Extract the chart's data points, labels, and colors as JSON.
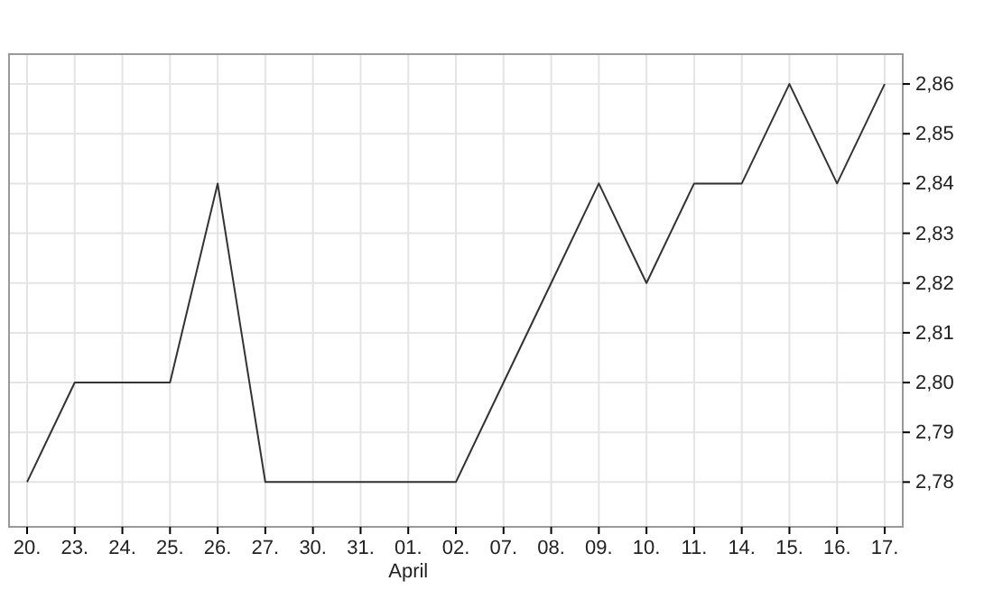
{
  "chart_data": {
    "type": "line",
    "categories": [
      "20.",
      "23.",
      "24.",
      "25.",
      "26.",
      "27.",
      "30.",
      "31.",
      "01.\nApril",
      "02.",
      "07.",
      "08.",
      "09.",
      "10.",
      "11.",
      "14.",
      "15.",
      "16.",
      "17."
    ],
    "series": [
      {
        "color": "#333333",
        "values": [
          2.78,
          2.8,
          2.8,
          2.8,
          2.84,
          2.78,
          2.78,
          2.78,
          2.78,
          2.78,
          2.8,
          2.82,
          2.84,
          2.82,
          2.84,
          2.84,
          2.86,
          2.84,
          2.86
        ]
      }
    ],
    "ylim": [
      2.771,
      2.866
    ],
    "yticks": [
      {
        "value": 2.78,
        "label": "2,78"
      },
      {
        "value": 2.79,
        "label": "2,79"
      },
      {
        "value": 2.8,
        "label": "2,80"
      },
      {
        "value": 2.81,
        "label": "2,81"
      },
      {
        "value": 2.82,
        "label": "2,82"
      },
      {
        "value": 2.83,
        "label": "2,83"
      },
      {
        "value": 2.84,
        "label": "2,84"
      },
      {
        "value": 2.85,
        "label": "2,85"
      },
      {
        "value": 2.86,
        "label": "2,86"
      }
    ],
    "grid": true,
    "marker": "none",
    "line_style": "solid"
  }
}
